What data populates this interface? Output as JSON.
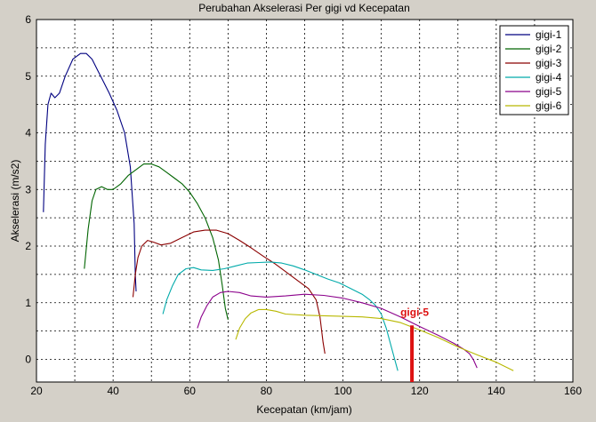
{
  "chart_data": {
    "type": "line",
    "title": "Perubahan Akselerasi Per gigi vd Kecepatan",
    "xlabel": "Kecepatan (km/jam)",
    "ylabel": "Akselerasi (m/s2)",
    "xlim": [
      20,
      160
    ],
    "ylim": [
      -0.4,
      6
    ],
    "xticks": [
      20,
      40,
      60,
      80,
      100,
      120,
      140,
      160
    ],
    "yticks": [
      0,
      1,
      2,
      3,
      4,
      5,
      6
    ],
    "grid": true,
    "legend_position": "top-right",
    "colors": {
      "background": "#d4d0c8",
      "plot_background": "#ffffff",
      "marker": "#dd1111"
    },
    "series": [
      {
        "name": "gigi-1",
        "color": "#000080",
        "x": [
          21.8,
          22.3,
          23.0,
          23.8,
          24.8,
          26.0,
          27.5,
          29.5,
          31.5,
          33.0,
          34.5,
          36.0,
          37.5,
          39.0,
          41.0,
          43.0,
          44.5,
          45.5,
          45.8,
          46.0
        ],
        "y": [
          2.6,
          3.8,
          4.5,
          4.7,
          4.62,
          4.7,
          5.0,
          5.3,
          5.4,
          5.4,
          5.3,
          5.1,
          4.9,
          4.7,
          4.4,
          4.0,
          3.4,
          2.4,
          1.5,
          1.2
        ]
      },
      {
        "name": "gigi-2",
        "color": "#006400",
        "x": [
          32.5,
          33.5,
          34.5,
          35.5,
          37.0,
          38.5,
          40.0,
          42.0,
          44.0,
          46.0,
          48.0,
          50.0,
          52.0,
          54.0,
          56.0,
          58.0,
          60.0,
          62.0,
          64.0,
          66.0,
          67.5,
          68.5,
          69.3,
          70.0
        ],
        "y": [
          1.6,
          2.3,
          2.8,
          3.0,
          3.05,
          3.0,
          3.0,
          3.1,
          3.25,
          3.35,
          3.45,
          3.45,
          3.4,
          3.3,
          3.2,
          3.1,
          2.95,
          2.75,
          2.5,
          2.15,
          1.75,
          1.3,
          0.9,
          0.7
        ]
      },
      {
        "name": "gigi-3",
        "color": "#8b0000",
        "x": [
          45.2,
          45.8,
          46.5,
          47.5,
          49.0,
          50.5,
          52.5,
          55.0,
          58.0,
          61.0,
          64.0,
          67.0,
          70.0,
          73.0,
          76.0,
          79.0,
          82.0,
          85.0,
          88.0,
          91.0,
          93.0,
          94.0,
          94.8,
          95.3
        ],
        "y": [
          1.1,
          1.5,
          1.8,
          2.0,
          2.1,
          2.07,
          2.02,
          2.05,
          2.15,
          2.25,
          2.28,
          2.28,
          2.22,
          2.1,
          1.97,
          1.83,
          1.7,
          1.55,
          1.4,
          1.25,
          1.05,
          0.75,
          0.3,
          0.1
        ]
      },
      {
        "name": "gigi-4",
        "color": "#00aaaa",
        "x": [
          53.0,
          54.0,
          55.5,
          57.0,
          59.0,
          61.0,
          63.0,
          66.0,
          69.0,
          72.0,
          75.0,
          78.0,
          81.0,
          84.0,
          87.0,
          90.0,
          93.0,
          96.0,
          99.0,
          102.0,
          105.0,
          107.0,
          108.5,
          110.0,
          111.3,
          112.5,
          113.5,
          114.3
        ],
        "y": [
          0.8,
          1.05,
          1.3,
          1.5,
          1.6,
          1.62,
          1.58,
          1.57,
          1.6,
          1.65,
          1.7,
          1.71,
          1.72,
          1.7,
          1.65,
          1.58,
          1.5,
          1.42,
          1.35,
          1.25,
          1.15,
          1.05,
          0.95,
          0.8,
          0.55,
          0.25,
          0.0,
          -0.2
        ]
      },
      {
        "name": "gigi-5",
        "color": "#8b008b",
        "x": [
          62.0,
          63.0,
          64.5,
          66.0,
          68.0,
          70.0,
          73.0,
          76.0,
          80.0,
          85.0,
          90.0,
          95.0,
          100.0,
          105.0,
          110.0,
          115.0,
          120.0,
          125.0,
          129.0,
          131.5,
          133.0,
          134.0,
          135.0
        ],
        "y": [
          0.55,
          0.75,
          0.95,
          1.1,
          1.18,
          1.2,
          1.18,
          1.12,
          1.1,
          1.12,
          1.15,
          1.13,
          1.08,
          1.0,
          0.9,
          0.75,
          0.58,
          0.42,
          0.28,
          0.18,
          0.1,
          0.0,
          -0.15
        ]
      },
      {
        "name": "gigi-6",
        "color": "#b8b800",
        "x": [
          72.0,
          73.0,
          74.5,
          76.0,
          78.0,
          80.0,
          82.5,
          85.0,
          90.0,
          95.0,
          100.0,
          105.0,
          110.0,
          115.0,
          120.0,
          125.0,
          130.0,
          135.0,
          140.0,
          144.5
        ],
        "y": [
          0.35,
          0.55,
          0.72,
          0.82,
          0.88,
          0.88,
          0.85,
          0.8,
          0.78,
          0.77,
          0.76,
          0.75,
          0.72,
          0.65,
          0.52,
          0.38,
          0.22,
          0.08,
          -0.05,
          -0.2
        ]
      }
    ],
    "annotation": {
      "text": "gigi-5",
      "x": 118,
      "y_range": [
        -0.4,
        0.6
      ],
      "color": "#dd1111"
    }
  }
}
